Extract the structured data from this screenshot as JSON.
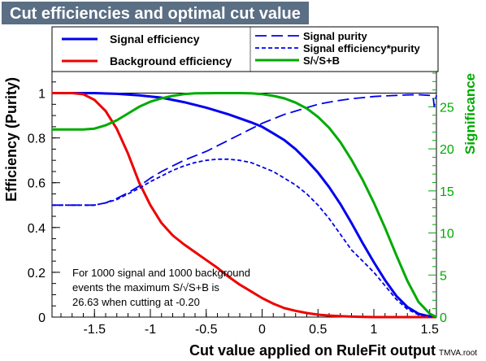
{
  "chart_data": {
    "type": "line",
    "title": "Cut efficiencies and optimal cut value",
    "xlabel": "Cut value applied on RuleFit output",
    "ylabel": "Efficiency (Purity)",
    "y2label": "Significance",
    "watermark": "TMVA.root",
    "xlim": [
      -1.88,
      1.56
    ],
    "ylim": [
      0,
      1.1
    ],
    "y2lim": [
      0,
      29.286
    ],
    "xticks": [
      -1.5,
      -1,
      -0.5,
      0,
      0.5,
      1,
      1.5
    ],
    "xtick_labels": [
      "-1.5",
      "-1",
      "-0.5",
      "0",
      "0.5",
      "1",
      "1.5"
    ],
    "yticks": [
      0,
      0.2,
      0.4,
      0.6,
      0.8,
      1
    ],
    "ytick_labels": [
      "0",
      "0.2",
      "0.4",
      "0.6",
      "0.8",
      "1"
    ],
    "y2ticks": [
      0,
      5,
      10,
      15,
      20,
      25
    ],
    "y2tick_labels": [
      "0",
      "5",
      "10",
      "15",
      "20",
      "25"
    ],
    "reference_line_y": 1.0,
    "legend": {
      "placement": "top",
      "left_entries": [
        {
          "name": "Signal efficiency",
          "color": "#0000ee",
          "style": "solid"
        },
        {
          "name": "Background efficiency",
          "color": "#ee0000",
          "style": "solid"
        }
      ],
      "right_entries": [
        {
          "name": "Signal purity",
          "color": "#0000ee",
          "style": "longdash"
        },
        {
          "name": "Signal efficiency*purity",
          "color": "#0000ee",
          "style": "shortdash"
        },
        {
          "name": "S/√S+B",
          "color": "#00aa00",
          "style": "solid"
        }
      ]
    },
    "annotation": [
      "For 1000 signal and 1000 background",
      "events the maximum S/√S+B is",
      "26.63 when cutting at -0.20"
    ],
    "series": [
      {
        "name": "Signal efficiency",
        "color": "#0000ee",
        "dash": "",
        "axis": "left",
        "x": [
          -1.88,
          -1.5,
          -1.3,
          -1.1,
          -0.9,
          -0.7,
          -0.5,
          -0.3,
          -0.1,
          0,
          0.1,
          0.2,
          0.3,
          0.4,
          0.5,
          0.6,
          0.7,
          0.8,
          0.9,
          1.0,
          1.1,
          1.2,
          1.3,
          1.4,
          1.5,
          1.56
        ],
        "y": [
          1.0,
          1.0,
          0.997,
          0.99,
          0.98,
          0.96,
          0.935,
          0.905,
          0.87,
          0.85,
          0.82,
          0.79,
          0.75,
          0.7,
          0.645,
          0.58,
          0.505,
          0.42,
          0.33,
          0.245,
          0.165,
          0.095,
          0.045,
          0.015,
          0.003,
          0.0
        ]
      },
      {
        "name": "Background efficiency",
        "color": "#ee0000",
        "dash": "",
        "axis": "left",
        "x": [
          -1.88,
          -1.7,
          -1.6,
          -1.5,
          -1.4,
          -1.3,
          -1.2,
          -1.1,
          -1.0,
          -0.9,
          -0.8,
          -0.7,
          -0.6,
          -0.5,
          -0.4,
          -0.3,
          -0.2,
          -0.1,
          0,
          0.1,
          0.2,
          0.3,
          0.4,
          0.5,
          0.6,
          0.7,
          0.8,
          0.9,
          1.0,
          1.2,
          1.56
        ],
        "y": [
          1.0,
          1.0,
          0.995,
          0.97,
          0.92,
          0.84,
          0.73,
          0.6,
          0.5,
          0.42,
          0.365,
          0.325,
          0.29,
          0.255,
          0.22,
          0.18,
          0.145,
          0.115,
          0.085,
          0.06,
          0.04,
          0.028,
          0.018,
          0.011,
          0.007,
          0.004,
          0.002,
          0.001,
          0.0,
          0.0,
          0.0
        ]
      },
      {
        "name": "Signal purity",
        "color": "#0000ee",
        "dash": "14,6",
        "axis": "left",
        "x": [
          -1.88,
          -1.5,
          -1.4,
          -1.3,
          -1.2,
          -1.1,
          -1.0,
          -0.9,
          -0.8,
          -0.7,
          -0.6,
          -0.5,
          -0.4,
          -0.3,
          -0.2,
          -0.1,
          0,
          0.1,
          0.2,
          0.3,
          0.4,
          0.5,
          0.6,
          0.7,
          0.8,
          0.9,
          1.0,
          1.1,
          1.2,
          1.3,
          1.4,
          1.5,
          1.53,
          1.54,
          1.56
        ],
        "y": [
          0.5,
          0.5,
          0.51,
          0.53,
          0.555,
          0.585,
          0.62,
          0.65,
          0.675,
          0.7,
          0.72,
          0.74,
          0.765,
          0.79,
          0.815,
          0.84,
          0.865,
          0.885,
          0.905,
          0.92,
          0.935,
          0.95,
          0.96,
          0.968,
          0.975,
          0.98,
          0.985,
          0.988,
          0.99,
          0.992,
          0.993,
          0.99,
          0.985,
          0.94,
          0.99
        ]
      },
      {
        "name": "Signal efficiency*purity",
        "color": "#0000ee",
        "dash": "5,3",
        "axis": "left",
        "x": [
          -1.88,
          -1.5,
          -1.4,
          -1.3,
          -1.2,
          -1.1,
          -1.0,
          -0.9,
          -0.8,
          -0.7,
          -0.6,
          -0.5,
          -0.4,
          -0.3,
          -0.2,
          -0.1,
          0,
          0.1,
          0.2,
          0.3,
          0.4,
          0.5,
          0.6,
          0.7,
          0.8,
          0.9,
          1.0,
          1.1,
          1.2,
          1.3,
          1.4,
          1.5,
          1.56
        ],
        "y": [
          0.5,
          0.5,
          0.51,
          0.525,
          0.55,
          0.575,
          0.605,
          0.63,
          0.655,
          0.675,
          0.69,
          0.7,
          0.705,
          0.705,
          0.7,
          0.69,
          0.67,
          0.65,
          0.62,
          0.59,
          0.55,
          0.5,
          0.44,
          0.37,
          0.3,
          0.25,
          0.2,
          0.14,
          0.08,
          0.035,
          0.01,
          0.002,
          0.0
        ]
      },
      {
        "name": "S/√S+B",
        "color": "#00aa00",
        "dash": "",
        "axis": "right",
        "x": [
          -1.88,
          -1.6,
          -1.5,
          -1.4,
          -1.3,
          -1.2,
          -1.1,
          -1.0,
          -0.9,
          -0.8,
          -0.7,
          -0.6,
          -0.5,
          -0.4,
          -0.3,
          -0.2,
          -0.1,
          0,
          0.1,
          0.2,
          0.3,
          0.4,
          0.5,
          0.6,
          0.7,
          0.8,
          0.9,
          1.0,
          1.1,
          1.2,
          1.3,
          1.4,
          1.5,
          1.56
        ],
        "y": [
          22.3,
          22.3,
          22.4,
          22.8,
          23.4,
          24.2,
          25.0,
          25.6,
          26.0,
          26.3,
          26.5,
          26.6,
          26.62,
          26.63,
          26.63,
          26.63,
          26.6,
          26.5,
          26.3,
          26.0,
          25.5,
          24.8,
          23.8,
          22.5,
          20.8,
          18.7,
          16.3,
          13.6,
          10.6,
          7.4,
          4.3,
          1.8,
          0.4,
          0.0
        ]
      }
    ]
  }
}
